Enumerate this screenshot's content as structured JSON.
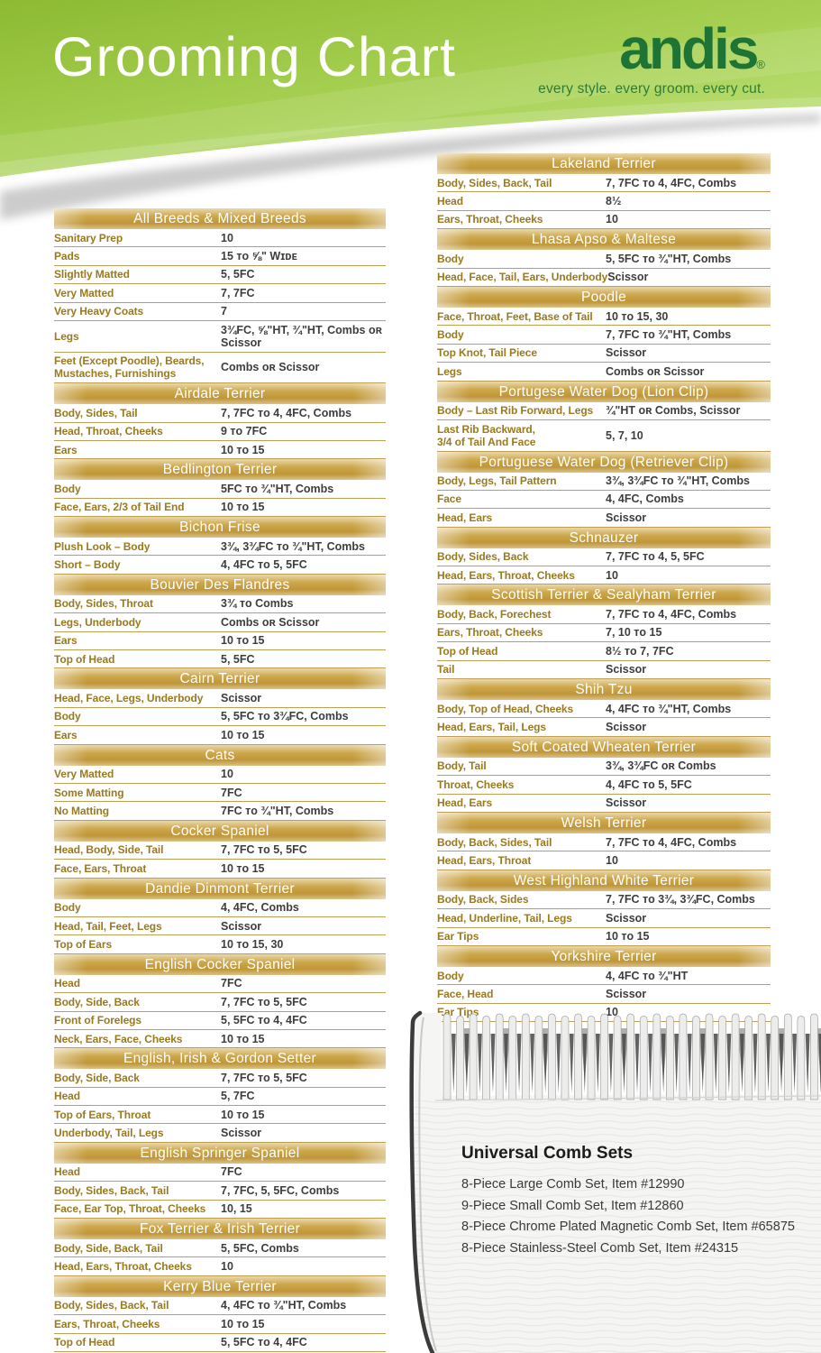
{
  "header": {
    "title": "Grooming Chart",
    "brand": "andis",
    "brand_mark": "®",
    "tagline": "every style. every groom. every cut."
  },
  "colors": {
    "header_green": "#a5ce4f",
    "brand_green": "#1e7434",
    "gold_bar": "#c39b3f",
    "label_gold": "#997a1f",
    "value_gray": "#3d3d3d"
  },
  "columns": {
    "left": [
      {
        "title": "All Breeds & Mixed Breeds",
        "rows": [
          {
            "label": "Sanitary Prep",
            "value": "10"
          },
          {
            "label": "Pads",
            "value": "15 ᴛᴏ ⅝\" Wɪᴅᴇ"
          },
          {
            "label": "Slightly Matted",
            "value": "5, 5FC"
          },
          {
            "label": "Very Matted",
            "value": "7, 7FC"
          },
          {
            "label": "Very Heavy Coats",
            "value": "7"
          },
          {
            "label": "Legs",
            "value": "3¾FC, ⅝\"HT, ¾\"HT, Combs ᴏʀ Scissor"
          },
          {
            "label": "Feet (Except Poodle), Beards,\nMustaches, Furnishings",
            "value": "Combs ᴏʀ Scissor"
          }
        ]
      },
      {
        "title": "Airdale Terrier",
        "rows": [
          {
            "label": "Body, Sides, Tail",
            "value": "7, 7FC ᴛᴏ 4, 4FC, Combs"
          },
          {
            "label": "Head, Throat, Cheeks",
            "value": "9 ᴛᴏ 7FC"
          },
          {
            "label": "Ears",
            "value": "10 ᴛᴏ 15"
          }
        ]
      },
      {
        "title": "Bedlington Terrier",
        "rows": [
          {
            "label": "Body",
            "value": "5FC ᴛᴏ ¾\"HT, Combs"
          },
          {
            "label": "Face, Ears, 2/3 of Tail End",
            "value": "10 ᴛᴏ 15"
          }
        ]
      },
      {
        "title": "Bichon Frise",
        "rows": [
          {
            "label": "Plush Look – Body",
            "value": "3¾, 3¾FC ᴛᴏ ¾\"HT, Combs"
          },
          {
            "label": "Short – Body",
            "value": "4, 4FC ᴛᴏ 5, 5FC"
          }
        ]
      },
      {
        "title": "Bouvier Des Flandres",
        "rows": [
          {
            "label": "Body, Sides, Throat",
            "value": "3¾ ᴛᴏ Combs"
          },
          {
            "label": "Legs, Underbody",
            "value": "Combs ᴏʀ Scissor"
          },
          {
            "label": "Ears",
            "value": "10 ᴛᴏ 15"
          },
          {
            "label": "Top of Head",
            "value": "5, 5FC"
          }
        ]
      },
      {
        "title": "Cairn Terrier",
        "rows": [
          {
            "label": "Head, Face, Legs, Underbody",
            "value": "Scissor"
          },
          {
            "label": "Body",
            "value": "5, 5FC ᴛᴏ 3¾FC, Combs"
          },
          {
            "label": "Ears",
            "value": "10 ᴛᴏ 15"
          }
        ]
      },
      {
        "title": "Cats",
        "rows": [
          {
            "label": "Very Matted",
            "value": "10"
          },
          {
            "label": "Some Matting",
            "value": "7FC"
          },
          {
            "label": "No Matting",
            "value": "7FC ᴛᴏ ¾\"HT, Combs"
          }
        ]
      },
      {
        "title": "Cocker Spaniel",
        "rows": [
          {
            "label": "Head, Body, Side, Tail",
            "value": "7, 7FC ᴛᴏ 5, 5FC"
          },
          {
            "label": "Face, Ears, Throat",
            "value": "10 ᴛᴏ 15"
          }
        ]
      },
      {
        "title": "Dandie Dinmont Terrier",
        "rows": [
          {
            "label": "Body",
            "value": "4, 4FC, Combs"
          },
          {
            "label": "Head, Tail, Feet, Legs",
            "value": "Scissor"
          },
          {
            "label": "Top of Ears",
            "value": "10 ᴛᴏ 15, 30"
          }
        ]
      },
      {
        "title": "English Cocker Spaniel",
        "rows": [
          {
            "label": "Head",
            "value": "7FC"
          },
          {
            "label": "Body, Side, Back",
            "value": "7, 7FC ᴛᴏ 5, 5FC"
          },
          {
            "label": "Front of Forelegs",
            "value": "5, 5FC ᴛᴏ 4, 4FC"
          },
          {
            "label": "Neck, Ears, Face, Cheeks",
            "value": "10 ᴛᴏ 15"
          }
        ]
      },
      {
        "title": "English, Irish & Gordon Setter",
        "rows": [
          {
            "label": "Body, Side, Back",
            "value": "7, 7FC ᴛᴏ 5, 5FC"
          },
          {
            "label": "Head",
            "value": "5, 7FC"
          },
          {
            "label": "Top of Ears, Throat",
            "value": "10 ᴛᴏ 15"
          },
          {
            "label": "Underbody, Tail, Legs",
            "value": "Scissor"
          }
        ]
      },
      {
        "title": "English Springer Spaniel",
        "rows": [
          {
            "label": "Head",
            "value": "7FC"
          },
          {
            "label": "Body, Sides, Back, Tail",
            "value": "7, 7FC, 5, 5FC, Combs"
          },
          {
            "label": "Face, Ear Top, Throat, Cheeks",
            "value": "10, 15"
          }
        ]
      },
      {
        "title": "Fox Terrier & Irish Terrier",
        "rows": [
          {
            "label": "Body, Side, Back, Tail",
            "value": "5, 5FC, Combs"
          },
          {
            "label": "Head, Ears, Throat, Cheeks",
            "value": "10"
          }
        ]
      },
      {
        "title": "Kerry Blue Terrier",
        "rows": [
          {
            "label": "Body, Sides, Back, Tail",
            "value": "4, 4FC ᴛᴏ ¾\"HT, Combs"
          },
          {
            "label": "Ears, Throat, Cheeks",
            "value": "10 ᴛᴏ 15"
          },
          {
            "label": "Top of Head",
            "value": "5, 5FC ᴛᴏ 4, 4FC"
          }
        ]
      }
    ],
    "right": [
      {
        "title": "Lakeland Terrier",
        "rows": [
          {
            "label": "Body, Sides, Back, Tail",
            "value": "7, 7FC ᴛᴏ 4, 4FC, Combs"
          },
          {
            "label": "Head",
            "value": "8½"
          },
          {
            "label": "Ears, Throat, Cheeks",
            "value": "10"
          }
        ]
      },
      {
        "title": "Lhasa Apso & Maltese",
        "rows": [
          {
            "label": "Body",
            "value": "5, 5FC ᴛᴏ ¾\"HT, Combs"
          },
          {
            "label": "Head, Face, Tail, Ears, Underbody",
            "value": "Scissor"
          }
        ]
      },
      {
        "title": "Poodle",
        "rows": [
          {
            "label": "Face, Throat, Feet, Base of Tail",
            "value": "10 ᴛᴏ 15, 30"
          },
          {
            "label": "Body",
            "value": "7, 7FC ᴛᴏ ¾\"HT, Combs"
          },
          {
            "label": "Top Knot, Tail Piece",
            "value": "Scissor"
          },
          {
            "label": "Legs",
            "value": "Combs ᴏʀ Scissor"
          }
        ]
      },
      {
        "title": "Portugese Water Dog (Lion Clip)",
        "rows": [
          {
            "label": "Body – Last Rib Forward, Legs",
            "value": "¾\"HT ᴏʀ Combs, Scissor"
          },
          {
            "label": "Last Rib Backward,\n3/4 of Tail And Face",
            "value": "5, 7, 10"
          }
        ]
      },
      {
        "title": "Portuguese Water Dog (Retriever Clip)",
        "rows": [
          {
            "label": "Body, Legs, Tail Pattern",
            "value": "3¾, 3¾FC ᴛᴏ ¾\"HT, Combs"
          },
          {
            "label": "Face",
            "value": "4, 4FC, Combs"
          },
          {
            "label": "Head, Ears",
            "value": "Scissor"
          }
        ]
      },
      {
        "title": "Schnauzer",
        "rows": [
          {
            "label": "Body, Sides, Back",
            "value": "7, 7FC ᴛᴏ 4, 5, 5FC"
          },
          {
            "label": "Head, Ears, Throat, Cheeks",
            "value": "10"
          }
        ]
      },
      {
        "title": "Scottish Terrier & Sealyham Terrier",
        "rows": [
          {
            "label": "Body, Back, Forechest",
            "value": "7, 7FC ᴛᴏ 4, 4FC, Combs"
          },
          {
            "label": "Ears, Throat, Cheeks",
            "value": "7, 10 ᴛᴏ 15"
          },
          {
            "label": "Top of Head",
            "value": "8½ ᴛᴏ 7, 7FC"
          },
          {
            "label": "Tail",
            "value": "Scissor"
          }
        ]
      },
      {
        "title": "Shih Tzu",
        "rows": [
          {
            "label": "Body, Top of Head, Cheeks",
            "value": "4, 4FC ᴛᴏ ¾\"HT, Combs"
          },
          {
            "label": "Head, Ears, Tail, Legs",
            "value": "Scissor"
          }
        ]
      },
      {
        "title": "Soft Coated Wheaten Terrier",
        "rows": [
          {
            "label": "Body, Tail",
            "value": "3¾, 3¾FC ᴏʀ Combs"
          },
          {
            "label": "Throat, Cheeks",
            "value": "4, 4FC ᴛᴏ 5, 5FC"
          },
          {
            "label": "Head, Ears",
            "value": "Scissor"
          }
        ]
      },
      {
        "title": "Welsh Terrier",
        "rows": [
          {
            "label": "Body, Back, Sides, Tail",
            "value": "7, 7FC ᴛᴏ 4, 4FC, Combs"
          },
          {
            "label": "Head, Ears, Throat",
            "value": "10"
          }
        ]
      },
      {
        "title": "West Highland White Terrier",
        "rows": [
          {
            "label": "Body, Back, Sides",
            "value": "7, 7FC ᴛᴏ 3¾, 3¾FC, Combs"
          },
          {
            "label": "Head, Underline, Tail, Legs",
            "value": "Scissor"
          },
          {
            "label": "Ear Tips",
            "value": "10 ᴛᴏ 15"
          }
        ]
      },
      {
        "title": "Yorkshire Terrier",
        "rows": [
          {
            "label": "Body",
            "value": "4, 4FC ᴛᴏ ¾\"HT"
          },
          {
            "label": "Face, Head",
            "value": "Scissor"
          },
          {
            "label": "Ear Tips",
            "value": "10"
          }
        ]
      }
    ]
  },
  "comb_section": {
    "heading": "Universal Comb Sets",
    "items": [
      "8-Piece Large Comb Set, Item #12990",
      "9-Piece Small Comb Set, Item #12860",
      "8-Piece Chrome Plated Magnetic Comb Set, Item #65875",
      "8-Piece Stainless-Steel Comb Set, Item #24315"
    ]
  }
}
